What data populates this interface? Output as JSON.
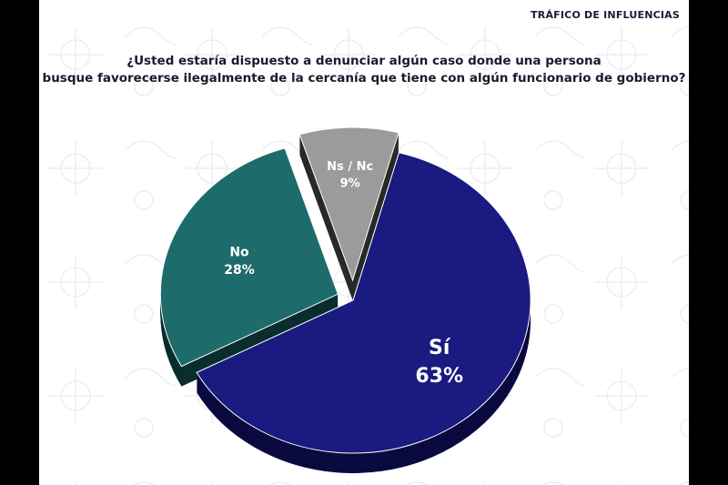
{
  "header": {
    "title": "TRÁFICO DE INFLUENCIAS"
  },
  "question": {
    "line1": "¿Usted estaría dispuesto a denunciar algún caso donde una persona",
    "line2": "busque favorecerse ilegalmente de la cercanía que tiene con algún funcionario de gobierno?"
  },
  "chart_data": {
    "type": "pie",
    "title": "",
    "slices": [
      {
        "label": "Sí",
        "value": 63,
        "value_label": "63%",
        "color": "#1a1a80",
        "side_color": "#0a0a40"
      },
      {
        "label": "No",
        "value": 28,
        "value_label": "28%",
        "color": "#1d6b6b",
        "side_color": "#0a2e2e"
      },
      {
        "label": "Ns / Nc",
        "value": 9,
        "value_label": "9%",
        "color": "#9b9b9b",
        "side_color": "#2a2a2a"
      }
    ]
  }
}
